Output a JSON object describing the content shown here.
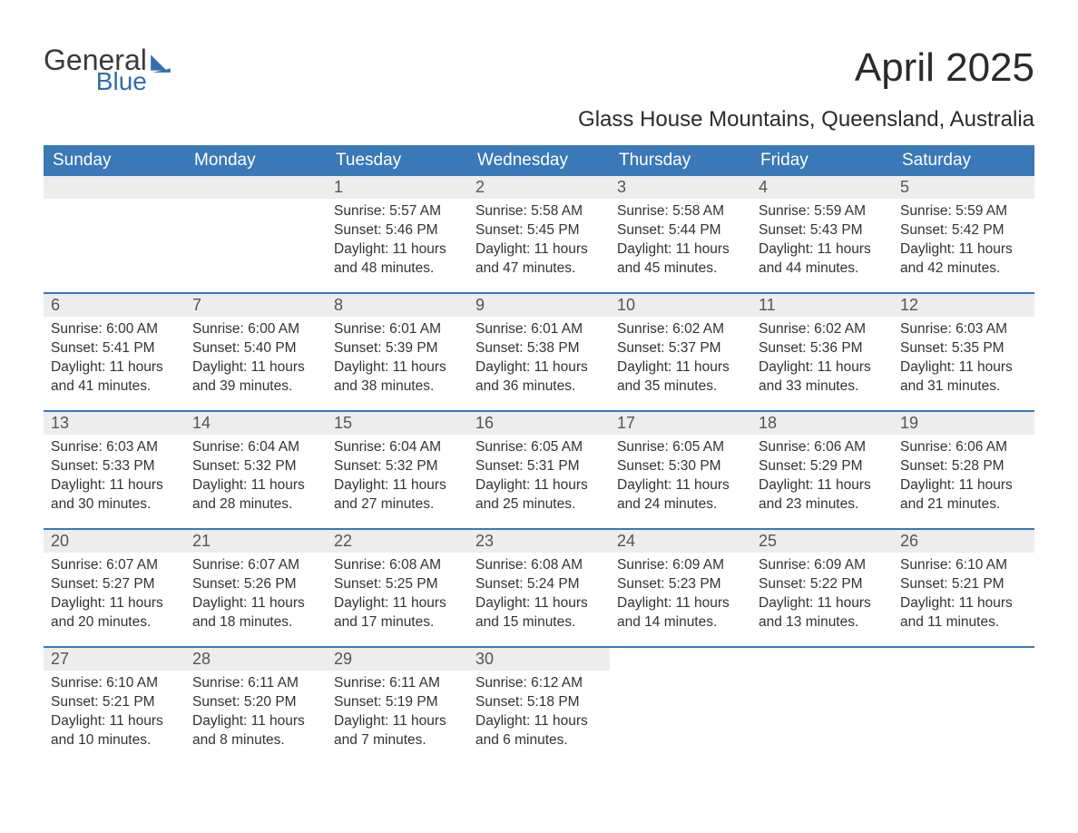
{
  "meta": {
    "colors": {
      "header_bg": "#3a78b8",
      "header_text": "#ffffff",
      "daynum_bg": "#ededed",
      "body_text": "#333333",
      "brand_dark": "#3a3a3a",
      "brand_blue": "#2f6fb0",
      "week_divider": "#3a78b8",
      "page_bg": "#ffffff"
    },
    "fonts": {
      "title_size_pt": 33,
      "location_size_pt": 18,
      "header_size_pt": 14,
      "body_size_pt": 12
    }
  },
  "logo": {
    "word1": "General",
    "word2": "Blue"
  },
  "title": "April 2025",
  "location": "Glass House Mountains, Queensland, Australia",
  "day_names": [
    "Sunday",
    "Monday",
    "Tuesday",
    "Wednesday",
    "Thursday",
    "Friday",
    "Saturday"
  ],
  "weeks": [
    [
      null,
      null,
      {
        "n": "1",
        "sunrise": "Sunrise: 5:57 AM",
        "sunset": "Sunset: 5:46 PM",
        "daylight": "Daylight: 11 hours and 48 minutes."
      },
      {
        "n": "2",
        "sunrise": "Sunrise: 5:58 AM",
        "sunset": "Sunset: 5:45 PM",
        "daylight": "Daylight: 11 hours and 47 minutes."
      },
      {
        "n": "3",
        "sunrise": "Sunrise: 5:58 AM",
        "sunset": "Sunset: 5:44 PM",
        "daylight": "Daylight: 11 hours and 45 minutes."
      },
      {
        "n": "4",
        "sunrise": "Sunrise: 5:59 AM",
        "sunset": "Sunset: 5:43 PM",
        "daylight": "Daylight: 11 hours and 44 minutes."
      },
      {
        "n": "5",
        "sunrise": "Sunrise: 5:59 AM",
        "sunset": "Sunset: 5:42 PM",
        "daylight": "Daylight: 11 hours and 42 minutes."
      }
    ],
    [
      {
        "n": "6",
        "sunrise": "Sunrise: 6:00 AM",
        "sunset": "Sunset: 5:41 PM",
        "daylight": "Daylight: 11 hours and 41 minutes."
      },
      {
        "n": "7",
        "sunrise": "Sunrise: 6:00 AM",
        "sunset": "Sunset: 5:40 PM",
        "daylight": "Daylight: 11 hours and 39 minutes."
      },
      {
        "n": "8",
        "sunrise": "Sunrise: 6:01 AM",
        "sunset": "Sunset: 5:39 PM",
        "daylight": "Daylight: 11 hours and 38 minutes."
      },
      {
        "n": "9",
        "sunrise": "Sunrise: 6:01 AM",
        "sunset": "Sunset: 5:38 PM",
        "daylight": "Daylight: 11 hours and 36 minutes."
      },
      {
        "n": "10",
        "sunrise": "Sunrise: 6:02 AM",
        "sunset": "Sunset: 5:37 PM",
        "daylight": "Daylight: 11 hours and 35 minutes."
      },
      {
        "n": "11",
        "sunrise": "Sunrise: 6:02 AM",
        "sunset": "Sunset: 5:36 PM",
        "daylight": "Daylight: 11 hours and 33 minutes."
      },
      {
        "n": "12",
        "sunrise": "Sunrise: 6:03 AM",
        "sunset": "Sunset: 5:35 PM",
        "daylight": "Daylight: 11 hours and 31 minutes."
      }
    ],
    [
      {
        "n": "13",
        "sunrise": "Sunrise: 6:03 AM",
        "sunset": "Sunset: 5:33 PM",
        "daylight": "Daylight: 11 hours and 30 minutes."
      },
      {
        "n": "14",
        "sunrise": "Sunrise: 6:04 AM",
        "sunset": "Sunset: 5:32 PM",
        "daylight": "Daylight: 11 hours and 28 minutes."
      },
      {
        "n": "15",
        "sunrise": "Sunrise: 6:04 AM",
        "sunset": "Sunset: 5:32 PM",
        "daylight": "Daylight: 11 hours and 27 minutes."
      },
      {
        "n": "16",
        "sunrise": "Sunrise: 6:05 AM",
        "sunset": "Sunset: 5:31 PM",
        "daylight": "Daylight: 11 hours and 25 minutes."
      },
      {
        "n": "17",
        "sunrise": "Sunrise: 6:05 AM",
        "sunset": "Sunset: 5:30 PM",
        "daylight": "Daylight: 11 hours and 24 minutes."
      },
      {
        "n": "18",
        "sunrise": "Sunrise: 6:06 AM",
        "sunset": "Sunset: 5:29 PM",
        "daylight": "Daylight: 11 hours and 23 minutes."
      },
      {
        "n": "19",
        "sunrise": "Sunrise: 6:06 AM",
        "sunset": "Sunset: 5:28 PM",
        "daylight": "Daylight: 11 hours and 21 minutes."
      }
    ],
    [
      {
        "n": "20",
        "sunrise": "Sunrise: 6:07 AM",
        "sunset": "Sunset: 5:27 PM",
        "daylight": "Daylight: 11 hours and 20 minutes."
      },
      {
        "n": "21",
        "sunrise": "Sunrise: 6:07 AM",
        "sunset": "Sunset: 5:26 PM",
        "daylight": "Daylight: 11 hours and 18 minutes."
      },
      {
        "n": "22",
        "sunrise": "Sunrise: 6:08 AM",
        "sunset": "Sunset: 5:25 PM",
        "daylight": "Daylight: 11 hours and 17 minutes."
      },
      {
        "n": "23",
        "sunrise": "Sunrise: 6:08 AM",
        "sunset": "Sunset: 5:24 PM",
        "daylight": "Daylight: 11 hours and 15 minutes."
      },
      {
        "n": "24",
        "sunrise": "Sunrise: 6:09 AM",
        "sunset": "Sunset: 5:23 PM",
        "daylight": "Daylight: 11 hours and 14 minutes."
      },
      {
        "n": "25",
        "sunrise": "Sunrise: 6:09 AM",
        "sunset": "Sunset: 5:22 PM",
        "daylight": "Daylight: 11 hours and 13 minutes."
      },
      {
        "n": "26",
        "sunrise": "Sunrise: 6:10 AM",
        "sunset": "Sunset: 5:21 PM",
        "daylight": "Daylight: 11 hours and 11 minutes."
      }
    ],
    [
      {
        "n": "27",
        "sunrise": "Sunrise: 6:10 AM",
        "sunset": "Sunset: 5:21 PM",
        "daylight": "Daylight: 11 hours and 10 minutes."
      },
      {
        "n": "28",
        "sunrise": "Sunrise: 6:11 AM",
        "sunset": "Sunset: 5:20 PM",
        "daylight": "Daylight: 11 hours and 8 minutes."
      },
      {
        "n": "29",
        "sunrise": "Sunrise: 6:11 AM",
        "sunset": "Sunset: 5:19 PM",
        "daylight": "Daylight: 11 hours and 7 minutes."
      },
      {
        "n": "30",
        "sunrise": "Sunrise: 6:12 AM",
        "sunset": "Sunset: 5:18 PM",
        "daylight": "Daylight: 11 hours and 6 minutes."
      },
      null,
      null,
      null
    ]
  ]
}
